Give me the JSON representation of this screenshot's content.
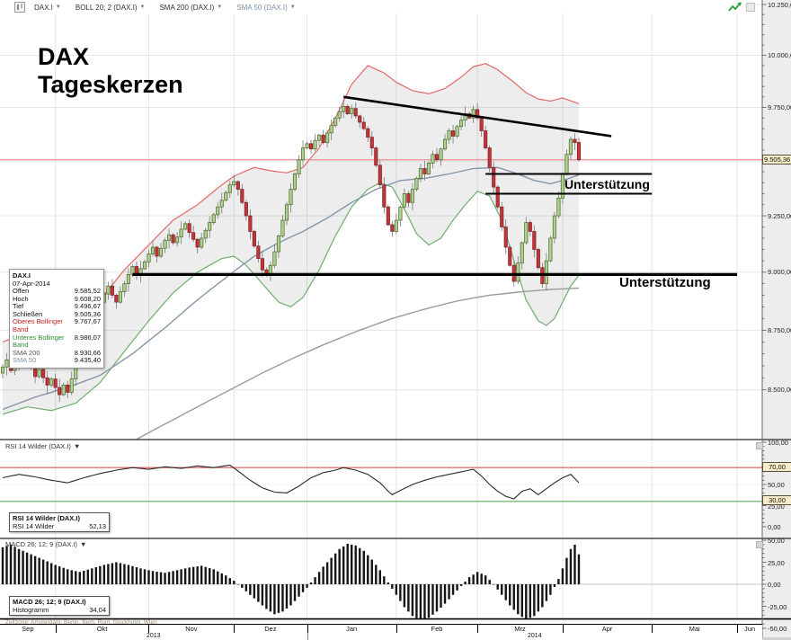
{
  "toolbar": {
    "items": [
      {
        "label": "DAX.I"
      },
      {
        "label": "BOLL 20; 2 (DAX.I)"
      },
      {
        "label": "SMA 200 (DAX.I)"
      },
      {
        "label": "SMA 50 (DAX.I)",
        "color": "#7d91a8"
      }
    ]
  },
  "title": {
    "line1": "DAX",
    "line2": "Tageskerzen"
  },
  "info_box": {
    "title": "DAX.I",
    "date": "07-Apr-2014",
    "rows": [
      {
        "label": "Offen",
        "value": "9.585,52"
      },
      {
        "label": "Hoch",
        "value": "9.608,20"
      },
      {
        "label": "Tief",
        "value": "9.496,67"
      },
      {
        "label": "Schließen",
        "value": "9.505,36"
      },
      {
        "label": "Oberes Bollinger Band",
        "value": "9.767,67",
        "color": "#c22222"
      },
      {
        "label": "Unteres Bollinger Band",
        "value": "8.986,07",
        "color": "#2e8b2e"
      },
      {
        "label": "SMA 200",
        "value": "8.930,66",
        "color": "#555555"
      },
      {
        "label": "SMA 50",
        "value": "9.435,40",
        "color": "#7d91a8"
      }
    ]
  },
  "annotations": {
    "support_label": "Unterstützung"
  },
  "price_axis": {
    "labels": [
      {
        "text": "10.250,00",
        "price": 10250
      },
      {
        "text": "10.000,00",
        "price": 10000
      },
      {
        "text": "9.750,00",
        "price": 9750
      },
      {
        "text": "9.250,00",
        "price": 9250
      },
      {
        "text": "9.000,00",
        "price": 9000
      },
      {
        "text": "8.750,00",
        "price": 8750
      },
      {
        "text": "8.500,00",
        "price": 8500
      }
    ],
    "current": {
      "text": "9.505,36",
      "price": 9505.36
    }
  },
  "rsi_panel": {
    "header": "RSI 14 Wilder (DAX.I)",
    "box_title": "RSI 14 Wilder (DAX.I)",
    "box_label": "RSI 14 Wilder",
    "box_value": "52,13",
    "axis": [
      {
        "text": "100,00",
        "v": 100
      },
      {
        "text": "75,00",
        "v": 75
      },
      {
        "text": "50,00",
        "v": 50
      },
      {
        "text": "25,00",
        "v": 25
      },
      {
        "text": "0,00",
        "v": 0
      }
    ],
    "level_labels": [
      "70,00",
      "30,00"
    ],
    "overbought": 70,
    "oversold": 30
  },
  "macd_panel": {
    "header": "MACD 26; 12; 9 (DAX.I)",
    "box_title": "MACD 26; 12; 9 (DAX.I)",
    "box_label": "Histogramm",
    "box_value": "34,04",
    "axis": [
      {
        "text": "50,00",
        "v": 50
      },
      {
        "text": "25,00",
        "v": 25
      },
      {
        "text": "0,00",
        "v": 0
      },
      {
        "text": "-25,00",
        "v": -25
      },
      {
        "text": "-50,00",
        "v": -50
      }
    ]
  },
  "time_axis": {
    "timezone": "Zeitzone: Amsterdam, Berlin, Bern, Rom, Stockholm, Wien",
    "months": [
      {
        "label": "Sep",
        "from": 0,
        "to": 13
      },
      {
        "label": "Okt",
        "from": 13,
        "to": 36
      },
      {
        "label": "Nov",
        "from": 36,
        "to": 57
      },
      {
        "label": "Dez",
        "from": 57,
        "to": 75
      },
      {
        "label": "Jan",
        "from": 75,
        "to": 97
      },
      {
        "label": "Feb",
        "from": 97,
        "to": 117
      },
      {
        "label": "Mrz",
        "from": 117,
        "to": 138
      },
      {
        "label": "Apr",
        "from": 138,
        "to": 160
      },
      {
        "label": "Mai",
        "from": 160,
        "to": 181
      },
      {
        "label": "Jun",
        "from": 181,
        "to": 187.2
      }
    ],
    "years": [
      {
        "label": "2013",
        "from": 0,
        "to": 75
      },
      {
        "label": "2014",
        "from": 75,
        "to": 187.2
      }
    ]
  },
  "colors": {
    "grid": "#e4e4e4",
    "up_fill": "#aecf96",
    "up_stroke": "#49681f",
    "down_fill": "#c2353b",
    "down_stroke": "#7c1f23",
    "wick": "#777777",
    "boll_upper": "#e26868",
    "boll_lower": "#6fae6f",
    "band_fill": "rgba(140,140,140,0.16)",
    "sma50": "#8696a8",
    "sma200": "#9b9b9b",
    "price_line": "#f78f8f",
    "rsi_line": "#2a2a2a",
    "rsi_upper": "#e57373",
    "rsi_lower": "#7cb87c",
    "macd_bar": "#151515",
    "drawing": "#000000"
  },
  "chart_data": {
    "type": "candlestick",
    "instrument": "DAX.I",
    "interval": "Tageskerzen (daily)",
    "price_range": [
      8500,
      10250
    ],
    "candles": {
      "first_open": 8570,
      "wick_seq": [
        12,
        28,
        8,
        22,
        35,
        10,
        18,
        30,
        6,
        24
      ],
      "closes": [
        8595,
        8625,
        8580,
        8640,
        8610,
        8660,
        8630,
        8595,
        8555,
        8585,
        8550,
        8520,
        8545,
        8510,
        8480,
        8520,
        8490,
        8545,
        8605,
        8655,
        8705,
        8750,
        8790,
        8835,
        8870,
        8905,
        8940,
        8900,
        8870,
        8915,
        8950,
        8990,
        9025,
        8985,
        9015,
        9045,
        9080,
        9110,
        9070,
        9105,
        9140,
        9165,
        9130,
        9155,
        9190,
        9215,
        9175,
        9145,
        9110,
        9150,
        9185,
        9220,
        9255,
        9290,
        9320,
        9355,
        9390,
        9405,
        9370,
        9310,
        9250,
        9180,
        9115,
        9060,
        9010,
        8985,
        9030,
        9090,
        9160,
        9230,
        9300,
        9370,
        9440,
        9505,
        9560,
        9580,
        9555,
        9595,
        9620,
        9585,
        9630,
        9665,
        9700,
        9730,
        9755,
        9720,
        9745,
        9710,
        9680,
        9650,
        9610,
        9560,
        9480,
        9390,
        9290,
        9210,
        9180,
        9230,
        9290,
        9350,
        9310,
        9370,
        9420,
        9465,
        9440,
        9490,
        9530,
        9505,
        9555,
        9600,
        9640,
        9615,
        9660,
        9690,
        9720,
        9700,
        9740,
        9700,
        9640,
        9560,
        9470,
        9380,
        9290,
        9200,
        9110,
        9030,
        8960,
        9040,
        9130,
        9220,
        9180,
        9100,
        9020,
        8950,
        9050,
        9150,
        9250,
        9330,
        9440,
        9530,
        9600,
        9585,
        9505.36
      ],
      "last": {
        "open": 9585.52,
        "high": 9608.2,
        "low": 9496.67,
        "close": 9505.36
      }
    },
    "overlays": {
      "boll_upper": [
        [
          0,
          8700
        ],
        [
          6,
          8740
        ],
        [
          12,
          8705
        ],
        [
          18,
          8760
        ],
        [
          24,
          8880
        ],
        [
          30,
          9010
        ],
        [
          36,
          9120
        ],
        [
          42,
          9230
        ],
        [
          48,
          9300
        ],
        [
          54,
          9390
        ],
        [
          57,
          9430
        ],
        [
          62,
          9470
        ],
        [
          66,
          9455
        ],
        [
          70,
          9445
        ],
        [
          74,
          9470
        ],
        [
          78,
          9560
        ],
        [
          82,
          9700
        ],
        [
          86,
          9860
        ],
        [
          90,
          9950
        ],
        [
          94,
          9915
        ],
        [
          97,
          9870
        ],
        [
          101,
          9830
        ],
        [
          105,
          9815
        ],
        [
          109,
          9840
        ],
        [
          113,
          9895
        ],
        [
          116,
          9945
        ],
        [
          119,
          9960
        ],
        [
          122,
          9930
        ],
        [
          126,
          9870
        ],
        [
          129,
          9820
        ],
        [
          132,
          9790
        ],
        [
          135,
          9780
        ],
        [
          138,
          9795
        ],
        [
          142,
          9767.67
        ]
      ],
      "boll_lower": [
        [
          0,
          8400
        ],
        [
          6,
          8430
        ],
        [
          12,
          8415
        ],
        [
          18,
          8445
        ],
        [
          24,
          8530
        ],
        [
          30,
          8660
        ],
        [
          36,
          8790
        ],
        [
          42,
          8910
        ],
        [
          48,
          9000
        ],
        [
          54,
          9060
        ],
        [
          57,
          9070
        ],
        [
          60,
          9030
        ],
        [
          64,
          8950
        ],
        [
          68,
          8870
        ],
        [
          71,
          8850
        ],
        [
          74,
          8890
        ],
        [
          78,
          9010
        ],
        [
          82,
          9160
        ],
        [
          86,
          9290
        ],
        [
          90,
          9370
        ],
        [
          93,
          9400
        ],
        [
          96,
          9380
        ],
        [
          99,
          9280
        ],
        [
          102,
          9170
        ],
        [
          105,
          9120
        ],
        [
          108,
          9150
        ],
        [
          111,
          9230
        ],
        [
          114,
          9300
        ],
        [
          117,
          9360
        ],
        [
          120,
          9340
        ],
        [
          123,
          9230
        ],
        [
          126,
          9050
        ],
        [
          129,
          8880
        ],
        [
          132,
          8790
        ],
        [
          134,
          8770
        ],
        [
          136,
          8800
        ],
        [
          138,
          8870
        ],
        [
          140,
          8940
        ],
        [
          142,
          8986.07
        ]
      ],
      "sma50": [
        [
          0,
          8420
        ],
        [
          8,
          8470
        ],
        [
          16,
          8510
        ],
        [
          24,
          8560
        ],
        [
          32,
          8650
        ],
        [
          40,
          8760
        ],
        [
          48,
          8880
        ],
        [
          56,
          8990
        ],
        [
          62,
          9070
        ],
        [
          68,
          9130
        ],
        [
          74,
          9180
        ],
        [
          80,
          9240
        ],
        [
          86,
          9310
        ],
        [
          92,
          9370
        ],
        [
          98,
          9410
        ],
        [
          104,
          9420
        ],
        [
          110,
          9440
        ],
        [
          116,
          9465
        ],
        [
          122,
          9470
        ],
        [
          127,
          9440
        ],
        [
          131,
          9410
        ],
        [
          135,
          9395
        ],
        [
          138,
          9410
        ],
        [
          142,
          9435.4
        ]
      ],
      "sma200": [
        [
          32,
          8290
        ],
        [
          40,
          8360
        ],
        [
          48,
          8430
        ],
        [
          56,
          8500
        ],
        [
          64,
          8570
        ],
        [
          72,
          8635
        ],
        [
          80,
          8695
        ],
        [
          88,
          8750
        ],
        [
          96,
          8800
        ],
        [
          104,
          8840
        ],
        [
          112,
          8875
        ],
        [
          120,
          8900
        ],
        [
          128,
          8915
        ],
        [
          135,
          8925
        ],
        [
          142,
          8930.66
        ]
      ]
    },
    "rsi": {
      "last_value": 52.13,
      "points": [
        [
          0,
          58
        ],
        [
          4,
          62
        ],
        [
          8,
          59
        ],
        [
          12,
          55
        ],
        [
          16,
          52
        ],
        [
          20,
          58
        ],
        [
          24,
          63
        ],
        [
          28,
          67
        ],
        [
          32,
          70
        ],
        [
          36,
          68
        ],
        [
          40,
          71
        ],
        [
          44,
          69
        ],
        [
          48,
          72
        ],
        [
          52,
          70
        ],
        [
          56,
          73
        ],
        [
          58,
          66
        ],
        [
          61,
          55
        ],
        [
          64,
          46
        ],
        [
          67,
          41
        ],
        [
          70,
          40
        ],
        [
          73,
          48
        ],
        [
          76,
          58
        ],
        [
          79,
          64
        ],
        [
          82,
          67
        ],
        [
          84,
          70
        ],
        [
          87,
          67
        ],
        [
          90,
          62
        ],
        [
          93,
          52
        ],
        [
          95,
          42
        ],
        [
          96,
          38
        ],
        [
          98,
          43
        ],
        [
          101,
          50
        ],
        [
          104,
          55
        ],
        [
          107,
          59
        ],
        [
          110,
          62
        ],
        [
          113,
          65
        ],
        [
          116,
          68
        ],
        [
          118,
          60
        ],
        [
          120,
          50
        ],
        [
          122,
          42
        ],
        [
          124,
          36
        ],
        [
          126,
          33
        ],
        [
          128,
          42
        ],
        [
          130,
          45
        ],
        [
          132,
          38
        ],
        [
          134,
          45
        ],
        [
          136,
          52
        ],
        [
          138,
          58
        ],
        [
          140,
          62
        ],
        [
          142,
          52.13
        ]
      ]
    },
    "macd_histogram": {
      "last_value": 34.04,
      "points": [
        [
          0,
          42
        ],
        [
          2,
          45
        ],
        [
          4,
          40
        ],
        [
          7,
          34
        ],
        [
          10,
          28
        ],
        [
          13,
          22
        ],
        [
          16,
          17
        ],
        [
          19,
          14
        ],
        [
          22,
          18
        ],
        [
          25,
          22
        ],
        [
          28,
          25
        ],
        [
          31,
          22
        ],
        [
          34,
          18
        ],
        [
          37,
          15
        ],
        [
          40,
          13
        ],
        [
          43,
          16
        ],
        [
          46,
          19
        ],
        [
          49,
          21
        ],
        [
          52,
          17
        ],
        [
          55,
          10
        ],
        [
          57,
          4
        ],
        [
          59,
          -4
        ],
        [
          61,
          -12
        ],
        [
          63,
          -20
        ],
        [
          65,
          -28
        ],
        [
          67,
          -34
        ],
        [
          69,
          -31
        ],
        [
          71,
          -24
        ],
        [
          73,
          -14
        ],
        [
          75,
          -4
        ],
        [
          77,
          8
        ],
        [
          79,
          20
        ],
        [
          81,
          30
        ],
        [
          83,
          40
        ],
        [
          85,
          46
        ],
        [
          87,
          44
        ],
        [
          89,
          38
        ],
        [
          91,
          28
        ],
        [
          93,
          16
        ],
        [
          95,
          2
        ],
        [
          97,
          -12
        ],
        [
          99,
          -26
        ],
        [
          101,
          -36
        ],
        [
          103,
          -41
        ],
        [
          105,
          -38
        ],
        [
          107,
          -31
        ],
        [
          109,
          -22
        ],
        [
          111,
          -12
        ],
        [
          113,
          -2
        ],
        [
          115,
          8
        ],
        [
          117,
          14
        ],
        [
          119,
          10
        ],
        [
          121,
          0
        ],
        [
          123,
          -12
        ],
        [
          125,
          -24
        ],
        [
          127,
          -34
        ],
        [
          129,
          -40
        ],
        [
          131,
          -36
        ],
        [
          133,
          -26
        ],
        [
          135,
          -12
        ],
        [
          137,
          6
        ],
        [
          138,
          18
        ],
        [
          139,
          30
        ],
        [
          140,
          40
        ],
        [
          141,
          45
        ],
        [
          142,
          34.04
        ]
      ]
    },
    "drawings": {
      "trendline": {
        "from": [
          84,
          9800
        ],
        "to": [
          150,
          9615
        ],
        "width": 2.6
      },
      "resistance_zone": {
        "price_top": 9440,
        "price_bottom": 9350,
        "from": 119,
        "to": 160,
        "width": 2
      },
      "major_support": {
        "price": 8990,
        "from": 32,
        "to": 181,
        "width": 3.2
      }
    }
  }
}
